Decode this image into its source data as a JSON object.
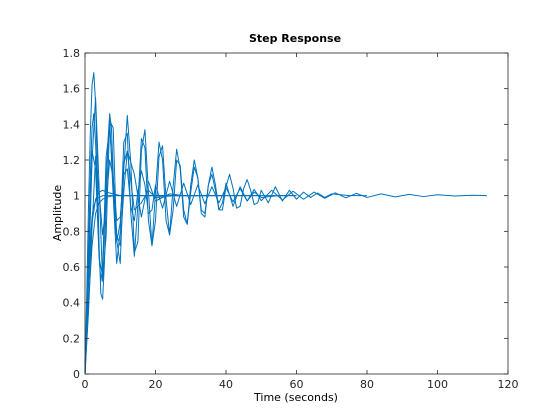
{
  "chart_data": {
    "type": "line",
    "title": "Step Response",
    "xlabel": "Time (seconds)",
    "ylabel": "Amplitude",
    "xlim": [
      0,
      120
    ],
    "ylim": [
      0,
      1.8
    ],
    "xticks": [
      0,
      20,
      40,
      60,
      80,
      100,
      120
    ],
    "yticks": [
      0,
      0.2,
      0.4,
      0.6,
      0.8,
      1,
      1.2,
      1.4,
      1.6,
      1.8
    ],
    "xtick_labels": [
      "0",
      "20",
      "40",
      "60",
      "80",
      "100",
      "120"
    ],
    "ytick_labels": [
      "0",
      "0.2",
      "0.4",
      "0.6",
      "0.8",
      "1",
      "1.2",
      "1.4",
      "1.6",
      "1.8"
    ],
    "grid": false,
    "line_color": "#0072BD",
    "series": [
      {
        "x": [
          0,
          0.5,
          1,
          1.5,
          2,
          2.5,
          3,
          3.5,
          4,
          4.5,
          5,
          6,
          7,
          8,
          10,
          12,
          15,
          20,
          25,
          30,
          40,
          60
        ],
        "y": [
          0,
          0.28,
          0.55,
          0.75,
          0.88,
          0.94,
          0.97,
          0.985,
          0.99,
          0.995,
          1.0,
          1.0,
          1.0,
          1.0,
          1.0,
          1.0,
          1.0,
          1.0,
          1.0,
          1.0,
          1.0,
          1.0
        ]
      },
      {
        "x": [
          0,
          0.5,
          1,
          1.5,
          2,
          2.5,
          3,
          3.5,
          4,
          4.5,
          5,
          5.5,
          6,
          6.5,
          7,
          7.5,
          8,
          8.5,
          9,
          10,
          11,
          12,
          13,
          14,
          16,
          18,
          20,
          25,
          30
        ],
        "y": [
          0,
          0.45,
          0.95,
          1.35,
          1.62,
          1.69,
          1.52,
          1.15,
          0.72,
          0.45,
          0.42,
          0.62,
          0.98,
          1.3,
          1.46,
          1.38,
          1.12,
          0.86,
          0.74,
          0.85,
          1.18,
          1.25,
          1.08,
          0.92,
          0.96,
          1.03,
          0.99,
          1.0,
          1.0
        ]
      },
      {
        "x": [
          0,
          0.5,
          1,
          1.5,
          2,
          2.5,
          3,
          3.5,
          4,
          4.5,
          5,
          5.5,
          6,
          7,
          8,
          9,
          10,
          11,
          12,
          14,
          16,
          18,
          20,
          24,
          28,
          35
        ],
        "y": [
          0,
          0.3,
          0.72,
          1.1,
          1.38,
          1.46,
          1.3,
          0.98,
          0.66,
          0.52,
          0.6,
          0.9,
          1.22,
          1.38,
          1.1,
          0.78,
          0.72,
          1.02,
          1.25,
          1.12,
          0.88,
          1.08,
          0.97,
          1.01,
          1.0,
          1.0
        ]
      },
      {
        "x": [
          0,
          1,
          2,
          3,
          4,
          5,
          6,
          7,
          8,
          9,
          10,
          11,
          12,
          13,
          14,
          15,
          16,
          17,
          18,
          19,
          20,
          21,
          22,
          23,
          24,
          25,
          26,
          27,
          28,
          29,
          30,
          31,
          32,
          33,
          34,
          35,
          36,
          37,
          38,
          39,
          40,
          42,
          44,
          46,
          48,
          50,
          55,
          60
        ],
        "y": [
          0,
          0.55,
          1.2,
          1.55,
          1.05,
          0.52,
          0.78,
          1.42,
          1.38,
          0.75,
          0.62,
          1.15,
          1.45,
          1.18,
          0.68,
          0.74,
          1.25,
          1.37,
          1.02,
          0.72,
          0.86,
          1.22,
          1.28,
          0.98,
          0.78,
          0.92,
          1.2,
          1.17,
          0.92,
          0.84,
          1.02,
          1.16,
          1.1,
          0.92,
          0.9,
          1.06,
          1.12,
          1.03,
          0.92,
          0.96,
          1.07,
          0.94,
          1.05,
          0.97,
          1.02,
          0.99,
          1.0,
          1.0
        ]
      },
      {
        "x": [
          0,
          1,
          2,
          3,
          4,
          5,
          6,
          7,
          8,
          9,
          10,
          11,
          12,
          13,
          14,
          15,
          16,
          17,
          18,
          19,
          20,
          21,
          22,
          23,
          24,
          25,
          26,
          27,
          28,
          29,
          30,
          31,
          32,
          33,
          34,
          35,
          36,
          37,
          38,
          39,
          40,
          41,
          42,
          43,
          44,
          45,
          46,
          47,
          48,
          49,
          50,
          52,
          54,
          56,
          58,
          60,
          62,
          64,
          66,
          68,
          70,
          75,
          80
        ],
        "y": [
          0,
          0.6,
          1.25,
          1.15,
          0.65,
          0.55,
          1.1,
          1.43,
          1.0,
          0.62,
          0.8,
          1.3,
          1.35,
          0.9,
          0.66,
          0.95,
          1.32,
          1.27,
          0.86,
          0.72,
          1.02,
          1.3,
          1.2,
          0.86,
          0.78,
          1.05,
          1.26,
          1.15,
          0.88,
          0.84,
          1.06,
          1.2,
          1.1,
          0.9,
          0.88,
          1.06,
          1.16,
          1.06,
          0.92,
          0.92,
          1.05,
          1.12,
          1.04,
          0.93,
          0.94,
          1.04,
          1.09,
          1.03,
          0.95,
          0.96,
          1.03,
          0.96,
          1.05,
          0.97,
          1.03,
          0.98,
          1.02,
          0.99,
          1.015,
          0.99,
          1.01,
          1.0,
          1.0
        ]
      },
      {
        "x": [
          0,
          1,
          2,
          3,
          4,
          5,
          6,
          7,
          8,
          9,
          10,
          11,
          12,
          13,
          14,
          15,
          16,
          17,
          18,
          19,
          20,
          22,
          24,
          26,
          28,
          30,
          32,
          34,
          36,
          38,
          40,
          42,
          44,
          46,
          48,
          50,
          53,
          56,
          59,
          62,
          65,
          68,
          71,
          74,
          77,
          80,
          84,
          88,
          92,
          96,
          100,
          105,
          110,
          114
        ],
        "y": [
          0,
          0.35,
          0.82,
          1.22,
          1.02,
          0.78,
          0.95,
          1.2,
          1.1,
          0.86,
          0.88,
          1.12,
          1.15,
          0.94,
          0.86,
          1.02,
          1.14,
          1.06,
          0.9,
          0.92,
          1.06,
          0.93,
          1.08,
          0.94,
          1.07,
          0.95,
          1.06,
          0.955,
          1.05,
          0.96,
          1.045,
          0.965,
          1.04,
          0.97,
          1.035,
          0.972,
          1.03,
          0.975,
          1.025,
          0.98,
          1.02,
          0.985,
          1.016,
          0.988,
          1.013,
          0.99,
          1.01,
          0.993,
          1.007,
          0.995,
          1.005,
          0.998,
          1.002,
          1.0
        ]
      },
      {
        "x": [
          0,
          1,
          2,
          3,
          4,
          5,
          6,
          8,
          10,
          12,
          14,
          16,
          18,
          20,
          25,
          30,
          35,
          40
        ],
        "y": [
          0,
          0.5,
          0.85,
          0.98,
          1.02,
          1.03,
          1.02,
          1.01,
          1.0,
          1.0,
          1.0,
          1.0,
          1.0,
          1.0,
          1.0,
          1.0,
          1.0,
          1.0
        ]
      },
      {
        "x": [
          0,
          1,
          2,
          3,
          4,
          5,
          6,
          7,
          8,
          9,
          10,
          12,
          14,
          16,
          18,
          20,
          25,
          30,
          40,
          50
        ],
        "y": [
          0,
          0.4,
          0.72,
          0.9,
          0.96,
          0.98,
          0.99,
          0.995,
          1.0,
          1.0,
          1.0,
          1.0,
          1.0,
          1.0,
          1.0,
          1.0,
          1.0,
          1.0,
          1.0,
          1.0
        ]
      }
    ]
  }
}
